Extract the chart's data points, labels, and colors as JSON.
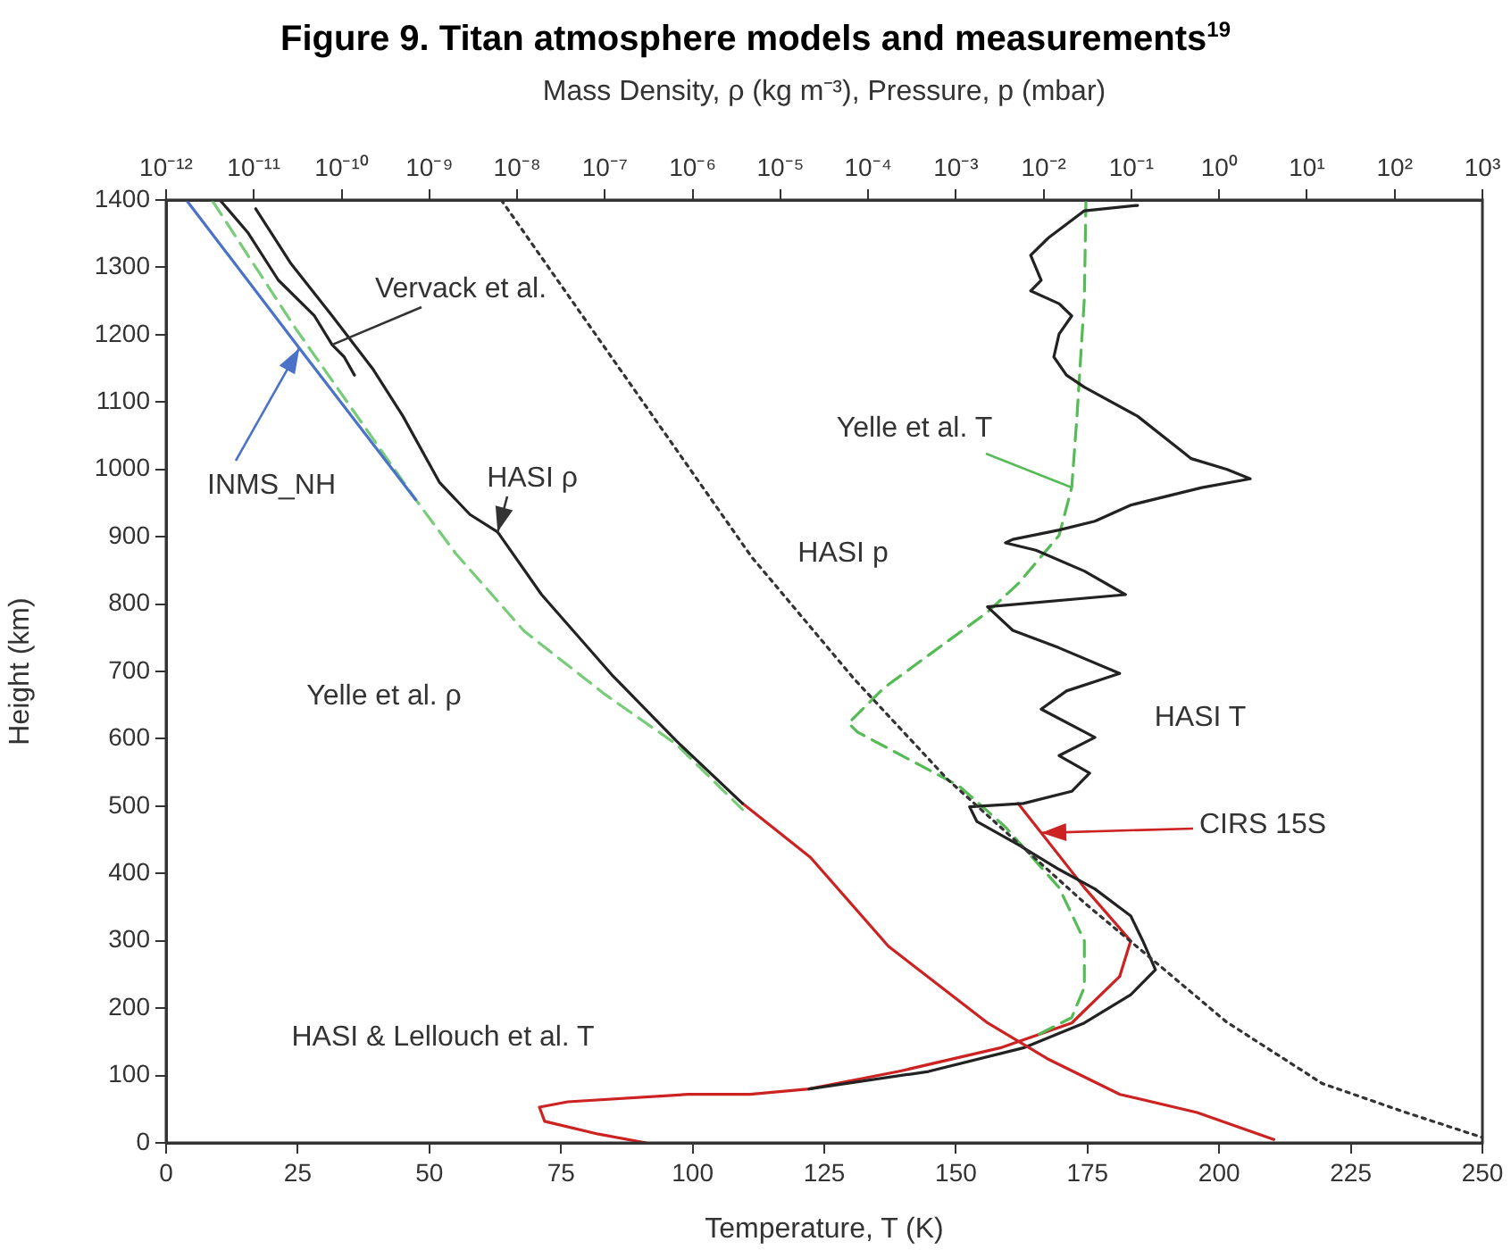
{
  "chart_data": {
    "type": "line",
    "title": "Figure 9. Titan atmosphere models and measurements$^{19}$",
    "xlabel": "Temperature, T (K)",
    "ylabel": "Height (km)",
    "x2label": "Mass Density, ρ (kg m⁻³), Pressure, p (mbar)",
    "xlim": [
      0,
      250
    ],
    "xticks": [
      0,
      25,
      50,
      75,
      100,
      125,
      150,
      175,
      200,
      225,
      250
    ],
    "x2lim": [
      1e-12,
      1000
    ],
    "x2ticks": [
      {
        "value": 1e-12,
        "label": "10⁻¹²"
      },
      {
        "value": 1e-11,
        "label": "10⁻¹¹"
      },
      {
        "value": 1e-10,
        "label": "10⁻¹⁰"
      },
      {
        "value": 1e-09,
        "label": "10⁻⁹"
      },
      {
        "value": 1e-08,
        "label": "10⁻⁸"
      },
      {
        "value": 1e-07,
        "label": "10⁻⁷"
      },
      {
        "value": 1e-06,
        "label": "10⁻⁶"
      },
      {
        "value": 1e-05,
        "label": "10⁻⁵"
      },
      {
        "value": 0.0001,
        "label": "10⁻⁴"
      },
      {
        "value": 0.001,
        "label": "10⁻³"
      },
      {
        "value": 0.01,
        "label": "10⁻²"
      },
      {
        "value": 0.1,
        "label": "10⁻¹"
      },
      {
        "value": 1,
        "label": "10⁰"
      },
      {
        "value": 10,
        "label": "10¹"
      },
      {
        "value": 100,
        "label": "10²"
      },
      {
        "value": 1000,
        "label": "10³"
      }
    ],
    "ylim": [
      0,
      1400
    ],
    "yticks": [
      0,
      100,
      200,
      300,
      400,
      500,
      600,
      700,
      800,
      900,
      1000,
      1100,
      1200,
      1300,
      1400
    ],
    "log": "x2",
    "grid": false,
    "legend": false,
    "marker": "none",
    "series": [
      {
        "name": "Vervack et al.",
        "color": "#222222",
        "axis": "x2",
        "line_style": "solid",
        "x": [
          4.1e-12,
          8.5e-12,
          1.9e-11,
          4.9e-11,
          7.8e-11,
          1.07e-10,
          1.4e-10
        ],
        "values": [
          1400,
          1352,
          1281,
          1228,
          1185,
          1167,
          1140
        ]
      },
      {
        "name": "HASI ρ",
        "color": "#222222",
        "axis": "x2",
        "line_style": "solid",
        "x": [
          1.05e-11,
          2.6e-11,
          7.8e-11,
          2.3e-10,
          5e-10,
          1.3e-09,
          2.9e-09,
          6e-09,
          1.9e-08,
          1.2e-07,
          6.5e-07,
          3.7e-06
        ],
        "values": [
          1387,
          1307,
          1228,
          1148,
          1079,
          981,
          933,
          907,
          814,
          695,
          597,
          504
        ]
      },
      {
        "name": "INMS_NH",
        "color": "#4a72c8",
        "axis": "x2",
        "line_style": "solid",
        "x": [
          1.7e-12,
          3.3e-11,
          7e-10
        ],
        "values": [
          1400,
          1180,
          955
        ]
      },
      {
        "name": "Yelle et al. ρ",
        "color": "#77cc77",
        "axis": "x2",
        "line_style": "dashed",
        "x": [
          3.4e-12,
          3e-11,
          7e-10,
          2e-09,
          1.2e-08,
          1e-07,
          6.5e-07,
          3.7e-06
        ],
        "values": [
          1398,
          1209,
          955,
          875,
          760,
          666,
          592,
          495
        ]
      },
      {
        "name": "HASI p",
        "color": "#333333",
        "axis": "x2",
        "line_style": "dotted",
        "x": [
          6.6e-09,
          4.7e-06,
          6.8e-05,
          0.0008,
          0.03,
          0.16,
          1.2,
          15,
          135,
          1000
        ],
        "values": [
          1400,
          870,
          690,
          540,
          355,
          276,
          180,
          88,
          45,
          8
        ]
      },
      {
        "color": "#cc2222",
        "axis": "x2",
        "line_style": "solid",
        "x": [
          3.7e-06,
          2.2e-05,
          0.00017,
          0.0023,
          0.011,
          0.074,
          0.56,
          4.2
        ],
        "values": [
          504,
          424,
          292,
          178,
          125,
          72,
          45,
          5
        ]
      },
      {
        "name": "HASI T",
        "color": "#222222",
        "line_style": "solid",
        "x": [
          184.5,
          174.4,
          167.6,
          164.2,
          166.2,
          164.2,
          169.6,
          172,
          169.6,
          168.6,
          171,
          174.4,
          184.5,
          194.7,
          201.5,
          205.9,
          196.7,
          183.2,
          176.4,
          169.6,
          160.8,
          159.4,
          165.2,
          174.4,
          182.2,
          156,
          160.8,
          169.6,
          181.1,
          171,
          166.2,
          176.4,
          169.6,
          175.4,
          172,
          162.8,
          152.6,
          154,
          161.8,
          169.6,
          176.4,
          183.2,
          185.5,
          187.9,
          183.2,
          174.4,
          162.8,
          144.8,
          122.1
        ],
        "values": [
          1392,
          1384,
          1344,
          1318,
          1281,
          1265,
          1246,
          1228,
          1201,
          1167,
          1140,
          1122,
          1079,
          1016,
          1000,
          986,
          973,
          947,
          923,
          910,
          896,
          891,
          880,
          849,
          814,
          796,
          761,
          735,
          697,
          671,
          644,
          602,
          575,
          549,
          522,
          504,
          499,
          477,
          443,
          406,
          377,
          337,
          300,
          257,
          220,
          178,
          141,
          106,
          80
        ]
      },
      {
        "name": "Yelle et al. T",
        "color": "#55bb55",
        "line_style": "dashed",
        "x": [
          174.7,
          174.4,
          173,
          172,
          169.6,
          161.8,
          156,
          144.8,
          136.4,
          129.6,
          131.3,
          150.6,
          159.4,
          169.6,
          174.4,
          174.4,
          172,
          165.2
        ],
        "values": [
          1400,
          1254,
          1079,
          973,
          902,
          830,
          788,
          724,
          676,
          623,
          610,
          530,
          469,
          379,
          300,
          231,
          186,
          159
        ]
      },
      {
        "name": "CIRS 15S",
        "color": "#cc2222",
        "line_style": "solid",
        "x": [
          161.8,
          174.4,
          183.2,
          181.1
        ],
        "values": [
          504,
          379,
          300,
          247
        ]
      },
      {
        "name": "HASI & Lellouch et al. T",
        "color": "#cc2222",
        "line_style": "solid",
        "x": [
          181.1,
          172,
          158.4,
          139.1,
          122.1,
          110.9,
          99.1,
          76.3,
          70.9,
          71.9,
          82.1,
          91.2
        ],
        "values": [
          247,
          178,
          141,
          106,
          80,
          72,
          72,
          61,
          53,
          32,
          13,
          0
        ]
      }
    ]
  }
}
